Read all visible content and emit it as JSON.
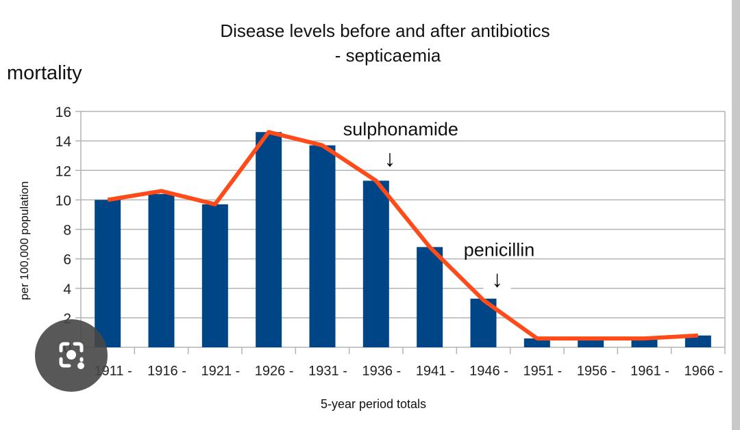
{
  "chart_data": {
    "type": "bar",
    "title_line1": "Disease levels before and after antibiotics",
    "title_line2": "- septicaemia",
    "corner_label": "mortality",
    "ylabel": "per 100,000 population",
    "xlabel": "5-year period totals",
    "ylim": [
      0,
      16
    ],
    "yticks": [
      0,
      2,
      4,
      6,
      8,
      10,
      12,
      14,
      16
    ],
    "grid": true,
    "categories": [
      "1911 -",
      "1916 -",
      "1921 -",
      "1926 -",
      "1931 -",
      "1936 -",
      "1941 -",
      "1946 -",
      "1951 -",
      "1956 -",
      "1961 -",
      "1966 -"
    ],
    "series": [
      {
        "name": "bars",
        "type": "bar",
        "color": "#004586",
        "values": [
          10.0,
          10.4,
          9.7,
          14.6,
          13.7,
          11.3,
          6.8,
          3.3,
          0.6,
          0.6,
          0.6,
          0.8
        ]
      },
      {
        "name": "trend",
        "type": "line",
        "color": "#ff4b1a",
        "values": [
          10.0,
          10.6,
          9.7,
          14.6,
          13.7,
          11.3,
          6.8,
          3.2,
          0.6,
          0.6,
          0.6,
          0.8
        ]
      }
    ],
    "annotations": [
      {
        "text": "sulphonamide",
        "arrow": "↓",
        "category_index": 5
      },
      {
        "text": "penicillin",
        "arrow": "↓",
        "category_index": 7
      }
    ]
  }
}
